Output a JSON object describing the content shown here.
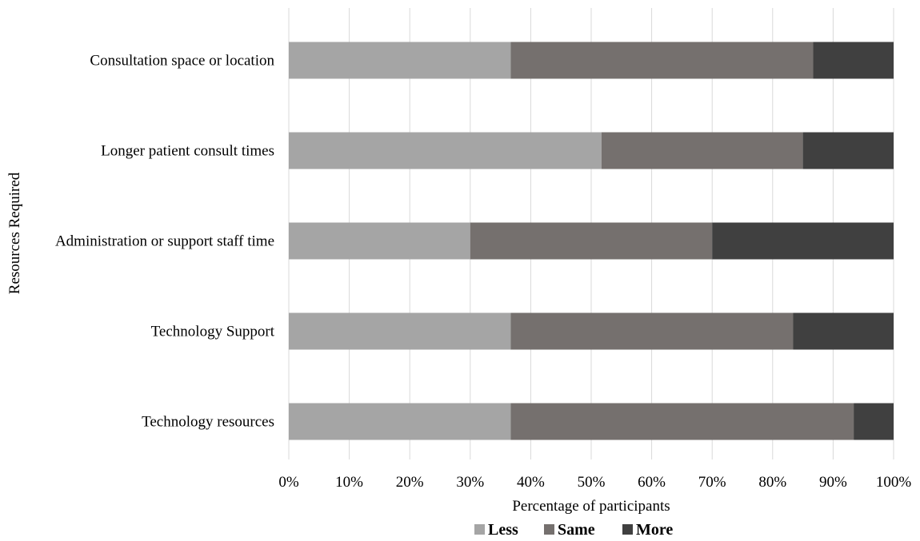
{
  "chart_data": {
    "type": "bar",
    "orientation": "horizontal",
    "stacked": true,
    "percent_stacked": true,
    "categories": [
      "Consultation space or location",
      "Longer patient consult times",
      "Administration or support staff time",
      "Technology Support",
      "Technology resources"
    ],
    "series": [
      {
        "name": "Less",
        "color": "#a5a5a5",
        "values": [
          36.7,
          51.7,
          30.0,
          36.7,
          36.7
        ]
      },
      {
        "name": "Same",
        "color": "#75706e",
        "values": [
          50.0,
          33.3,
          40.0,
          46.7,
          56.7
        ]
      },
      {
        "name": "More",
        "color": "#404040",
        "values": [
          13.3,
          15.0,
          30.0,
          16.6,
          6.6
        ]
      }
    ],
    "xlabel": "Percentage of participants",
    "ylabel": "Resources Required",
    "xlim": [
      0,
      100
    ],
    "xticks": [
      "0%",
      "10%",
      "20%",
      "30%",
      "40%",
      "50%",
      "60%",
      "70%",
      "80%",
      "90%",
      "100%"
    ],
    "grid": "vertical",
    "legend": "bottom"
  }
}
